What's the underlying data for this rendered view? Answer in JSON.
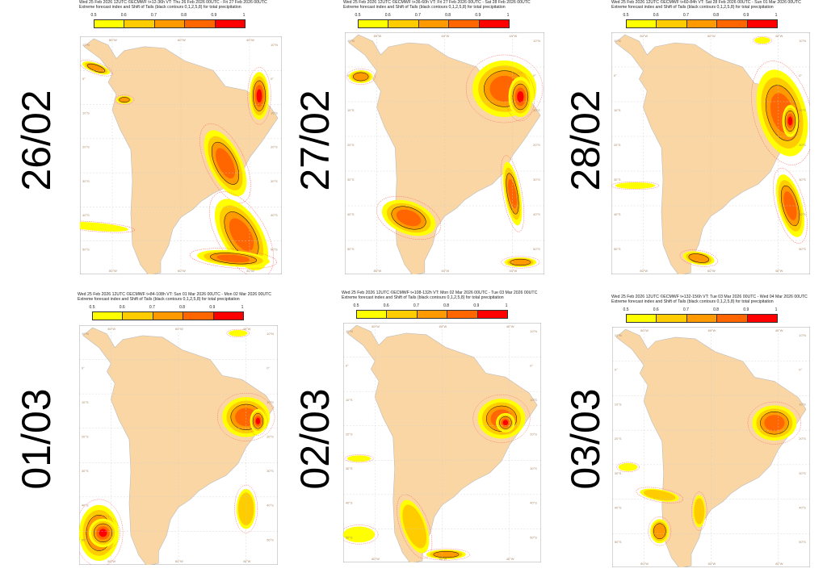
{
  "panels": [
    {
      "date": "26/02",
      "header1": "Wed 25 Feb 2026 12UTC ©ECMWF t+12-36h  VT: Thu 26 Feb 2026 00UTC - Fri 27 Feb 2026 00UTC"
    },
    {
      "date": "27/02",
      "header1": "Wed 25 Feb 2026 12UTC ©ECMWF t+36-60h  VT: Fri 27 Feb 2026 00UTC - Sat 28 Feb 2026 00UTC"
    },
    {
      "date": "28/02",
      "header1": "Wed 25 Feb 2026 12UTC ©ECMWF t+60-84h  VT: Sat 28 Feb 2026 00UTC - Sun 01 Mar 2026 00UTC"
    },
    {
      "date": "01/03",
      "header1": "Wed 25 Feb 2026 12UTC ©ECMWF t+84-108h  VT: Sun 01 Mar 2026 00UTC - Mon 02 Mar 2026 00UTC"
    },
    {
      "date": "02/03",
      "header1": "Wed 25 Feb 2026 12UTC ©ECMWF t+108-132h  VT: Mon 02 Mar 2026 00UTC - Tue 03 Mar 2026 00UTC"
    },
    {
      "date": "03/03",
      "header1": "Wed 25 Feb 2026 12UTC ©ECMWF t+132-156h  VT: Tue 03 Mar 2026 00UTC - Wed 04 Mar 2026 00UTC"
    }
  ],
  "header2": "Extreme forecast index and Shift of Tails (black contours 0,1,2,5,8) for total precipitation",
  "colorbar": {
    "ticks": [
      "0.5",
      "0.6",
      "0.7",
      "0.8",
      "0.9",
      "1"
    ],
    "colors": [
      "#ffff00",
      "#ffcc00",
      "#ff9900",
      "#ff6600",
      "#ff0000"
    ]
  },
  "map": {
    "land_color": "#fad6a5",
    "lat_labels": [
      "10°N",
      "0°",
      "10°S",
      "20°S",
      "30°S",
      "40°S",
      "50°S"
    ],
    "lon_labels": [
      "80°W",
      "60°W",
      "40°W"
    ]
  }
}
